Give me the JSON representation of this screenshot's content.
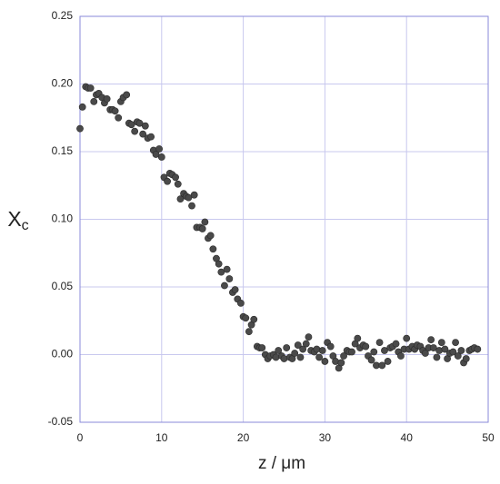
{
  "chart_data": {
    "type": "scatter",
    "xlabel": "z / μm",
    "ylabel": {
      "main": "X",
      "sub": "c"
    },
    "xlim": [
      0,
      50
    ],
    "ylim": [
      -0.05,
      0.25
    ],
    "xticks": [
      0,
      10,
      20,
      30,
      40,
      50
    ],
    "yticks": [
      -0.05,
      {
        "value": 0,
        "label": "0.00"
      },
      0.05,
      {
        "value": 0.1,
        "label": "0.10"
      },
      0.15,
      {
        "value": 0.2,
        "label": "0.20"
      },
      0.25
    ],
    "grid": true,
    "color": "#4a4a4a",
    "x": [
      0.0,
      0.3,
      0.7,
      1.0,
      1.3,
      1.7,
      2.0,
      2.3,
      2.7,
      3.0,
      3.3,
      3.7,
      4.0,
      4.3,
      4.7,
      5.0,
      5.3,
      5.7,
      6.0,
      6.3,
      6.7,
      7.0,
      7.3,
      7.7,
      8.0,
      8.3,
      8.7,
      9.0,
      9.3,
      9.7,
      10.0,
      10.3,
      10.7,
      11.0,
      11.3,
      11.7,
      12.0,
      12.3,
      12.7,
      13.0,
      13.3,
      13.7,
      14.0,
      14.3,
      14.7,
      15.0,
      15.3,
      15.7,
      16.0,
      16.3,
      16.7,
      17.0,
      17.3,
      17.7,
      18.0,
      18.3,
      18.7,
      19.0,
      19.3,
      19.7,
      20.0,
      20.3,
      20.7,
      21.0,
      21.3,
      21.7,
      22.0,
      22.3,
      22.7,
      23.0,
      23.3,
      23.7,
      24.0,
      24.3,
      24.7,
      25.0,
      25.3,
      25.7,
      26.0,
      26.3,
      26.7,
      27.0,
      27.3,
      27.7,
      28.0,
      28.3,
      28.7,
      29.0,
      29.3,
      29.7,
      30.0,
      30.3,
      30.7,
      31.0,
      31.3,
      31.7,
      32.0,
      32.3,
      32.7,
      33.0,
      33.3,
      33.7,
      34.0,
      34.3,
      34.7,
      35.0,
      35.3,
      35.7,
      36.0,
      36.3,
      36.7,
      37.0,
      37.3,
      37.7,
      38.0,
      38.3,
      38.7,
      39.0,
      39.3,
      39.7,
      40.0,
      40.3,
      40.7,
      41.0,
      41.3,
      41.7,
      42.0,
      42.3,
      42.7,
      43.0,
      43.3,
      43.7,
      44.0,
      44.3,
      44.7,
      45.0,
      45.3,
      45.7,
      46.0,
      46.3,
      46.7,
      47.0,
      47.3,
      47.7,
      48.0,
      48.3,
      48.7
    ],
    "values": [
      0.167,
      0.183,
      0.198,
      0.197,
      0.197,
      0.187,
      0.192,
      0.193,
      0.19,
      0.186,
      0.189,
      0.181,
      0.181,
      0.18,
      0.175,
      0.187,
      0.19,
      0.192,
      0.171,
      0.17,
      0.165,
      0.172,
      0.171,
      0.163,
      0.169,
      0.16,
      0.161,
      0.151,
      0.148,
      0.152,
      0.146,
      0.131,
      0.128,
      0.134,
      0.133,
      0.131,
      0.126,
      0.115,
      0.119,
      0.117,
      0.116,
      0.11,
      0.118,
      0.094,
      0.094,
      0.093,
      0.098,
      0.086,
      0.088,
      0.078,
      0.071,
      0.067,
      0.061,
      0.051,
      0.063,
      0.056,
      0.046,
      0.048,
      0.041,
      0.038,
      0.028,
      0.027,
      0.017,
      0.022,
      0.026,
      0.006,
      0.005,
      0.005,
      0.0,
      -0.003,
      -0.001,
      0.0,
      -0.002,
      0.003,
      -0.001,
      -0.003,
      0.005,
      -0.002,
      -0.003,
      0.001,
      0.007,
      -0.002,
      0.004,
      0.008,
      0.013,
      0.003,
      0.002,
      0.004,
      -0.002,
      0.003,
      -0.005,
      0.009,
      0.006,
      -0.001,
      -0.005,
      -0.01,
      -0.006,
      -0.001,
      0.003,
      0.002,
      0.002,
      0.008,
      0.012,
      0.005,
      0.007,
      0.006,
      -0.001,
      -0.004,
      0.002,
      -0.008,
      0.009,
      -0.008,
      0.003,
      -0.005,
      0.005,
      0.006,
      0.008,
      0.002,
      -0.001,
      0.004,
      0.012,
      0.004,
      0.006,
      0.004,
      0.007,
      0.006,
      0.003,
      0.001,
      0.005,
      0.011,
      0.005,
      -0.002,
      0.003,
      0.009,
      0.004,
      -0.003,
      0.001,
      0.002,
      0.009,
      -0.001,
      0.003,
      -0.006,
      -0.003,
      0.003,
      0.004,
      0.005,
      0.004
    ]
  }
}
